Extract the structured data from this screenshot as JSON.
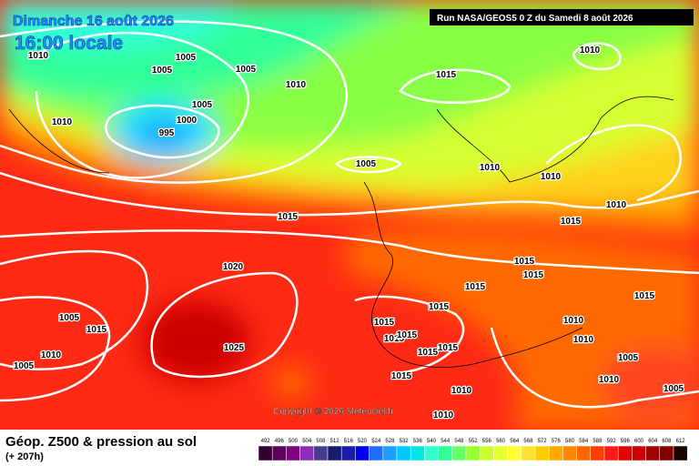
{
  "header": {
    "date": "Dimanche 16 août 2026",
    "time": "16:00 locale",
    "run": "Run NASA/GEOS5 0 Z du Samedi 8 août 2026"
  },
  "copyright": "Copyright © 2026 Meteociel.fr",
  "isobar_labels": [
    "1010",
    "1005",
    "1005",
    "1005",
    "1010",
    "1015",
    "1010",
    "1010",
    "1005",
    "1000",
    "995",
    "1005",
    "1010",
    "1010",
    "1010",
    "1015",
    "1015",
    "1020",
    "1015",
    "1015",
    "1015",
    "1015",
    "1005",
    "1015",
    "1015",
    "1015",
    "1010",
    "1015",
    "1015",
    "1010",
    "1025",
    "1010",
    "1015",
    "1015",
    "1005",
    "1005",
    "1015",
    "1010",
    "1005",
    "1010",
    "1010"
  ],
  "legend": {
    "title": "Géop. Z500 & pression au sol",
    "subtitle": "(+ 207h)",
    "items": [
      {
        "label": "492",
        "color": "#330033"
      },
      {
        "label": "496",
        "color": "#5c005c"
      },
      {
        "label": "500",
        "color": "#800080"
      },
      {
        "label": "504",
        "color": "#8b2fb8"
      },
      {
        "label": "508",
        "color": "#483d8b"
      },
      {
        "label": "512",
        "color": "#191970"
      },
      {
        "label": "516",
        "color": "#1c1caa"
      },
      {
        "label": "520",
        "color": "#0000ee"
      },
      {
        "label": "524",
        "color": "#1e6fff"
      },
      {
        "label": "528",
        "color": "#1e9fff"
      },
      {
        "label": "532",
        "color": "#00c8ff"
      },
      {
        "label": "536",
        "color": "#00e5e5"
      },
      {
        "label": "540",
        "color": "#33ffcc"
      },
      {
        "label": "544",
        "color": "#33ff99"
      },
      {
        "label": "548",
        "color": "#66ff66"
      },
      {
        "label": "552",
        "color": "#99ff33"
      },
      {
        "label": "556",
        "color": "#ccff33"
      },
      {
        "label": "560",
        "color": "#e8ff33"
      },
      {
        "label": "564",
        "color": "#ffff33"
      },
      {
        "label": "568",
        "color": "#ffe033"
      },
      {
        "label": "572",
        "color": "#ffcc00"
      },
      {
        "label": "576",
        "color": "#ffaa00"
      },
      {
        "label": "580",
        "color": "#ff8800"
      },
      {
        "label": "584",
        "color": "#ff6600"
      },
      {
        "label": "588",
        "color": "#ff3d00"
      },
      {
        "label": "592",
        "color": "#ff1a1a"
      },
      {
        "label": "596",
        "color": "#e60000"
      },
      {
        "label": "600",
        "color": "#cc0000"
      },
      {
        "label": "604",
        "color": "#a30000"
      },
      {
        "label": "608",
        "color": "#800000"
      },
      {
        "label": "612",
        "color": "#1a0000"
      }
    ]
  }
}
